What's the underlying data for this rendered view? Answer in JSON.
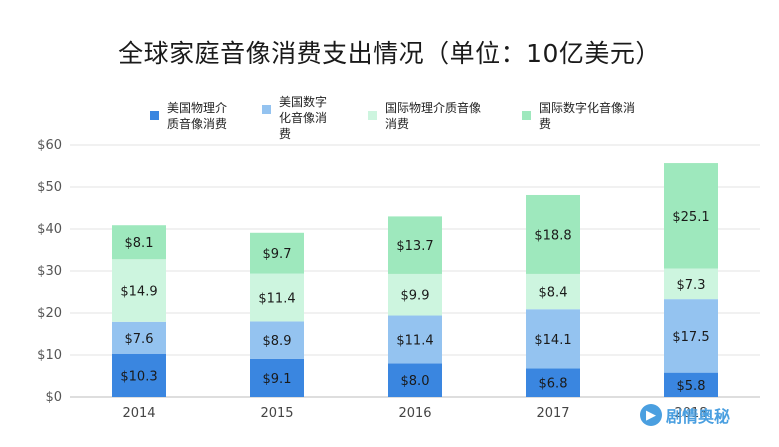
{
  "chart_data": {
    "type": "bar",
    "stacked": true,
    "title": "全球家庭音像消费支出情况（单位：10亿美元）",
    "categories": [
      "2014",
      "2015",
      "2016",
      "2017",
      "2018"
    ],
    "ylim": [
      0,
      60
    ],
    "yticks": [
      "$0",
      "$10",
      "$20",
      "$30",
      "$40",
      "$50",
      "$60"
    ],
    "grid": true,
    "legend_position": "top",
    "series": [
      {
        "name": "美国物理介\n质音像消费",
        "color": "#3a86e0",
        "values": [
          10.3,
          9.1,
          8.0,
          6.8,
          5.8
        ],
        "labels": [
          "$10.3",
          "$9.1",
          "$8.0",
          "$6.8",
          "$5.8"
        ]
      },
      {
        "name": "美国数字\n化音像消\n费",
        "color": "#94c3f0",
        "values": [
          7.6,
          8.9,
          11.4,
          14.1,
          17.5
        ],
        "labels": [
          "$7.6",
          "$8.9",
          "$11.4",
          "$14.1",
          "$17.5"
        ]
      },
      {
        "name": "国际物理介质音像\n消费",
        "color": "#cdf5df",
        "values": [
          14.9,
          11.4,
          9.9,
          8.4,
          7.3
        ],
        "labels": [
          "$14.9",
          "$11.4",
          "$9.9",
          "$8.4",
          "$7.3"
        ]
      },
      {
        "name": "国际数字化音像消\n费",
        "color": "#9ee8bd",
        "values": [
          8.1,
          9.7,
          13.7,
          18.8,
          25.1
        ],
        "labels": [
          "$8.1",
          "$9.7",
          "$13.7",
          "$18.8",
          "$25.1"
        ]
      }
    ]
  },
  "watermark": {
    "text": "剧情奥秘"
  }
}
